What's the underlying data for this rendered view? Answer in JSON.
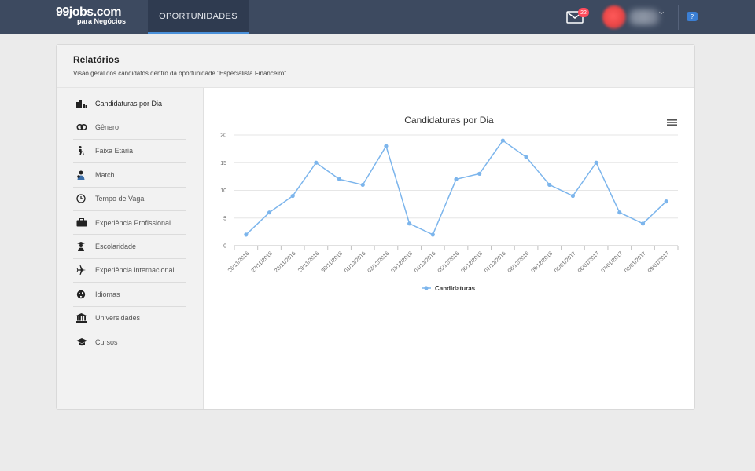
{
  "header": {
    "logo_main": "99jobs.com",
    "logo_sub": "para Negócios",
    "nav_tab": "OPORTUNIDADES",
    "mail_count": "22",
    "help_label": "?"
  },
  "page": {
    "title": "Relatórios",
    "subtitle": "Visão geral dos candidatos dentro da oportunidade \"Especialista Financeiro\"."
  },
  "sidebar": {
    "items": [
      {
        "label": "Candidaturas por Dia",
        "icon": "bar-chart-icon",
        "active": true
      },
      {
        "label": "Gênero",
        "icon": "gender-icon"
      },
      {
        "label": "Faixa Etária",
        "icon": "elderly-icon"
      },
      {
        "label": "Match",
        "icon": "match-icon"
      },
      {
        "label": "Tempo de Vaga",
        "icon": "clock-icon"
      },
      {
        "label": "Experiência Profissional",
        "icon": "briefcase-icon"
      },
      {
        "label": "Escolaridade",
        "icon": "graduate-icon"
      },
      {
        "label": "Experiência internacional",
        "icon": "airplane-icon"
      },
      {
        "label": "Idiomas",
        "icon": "globe-icon"
      },
      {
        "label": "Universidades",
        "icon": "university-icon"
      },
      {
        "label": "Cursos",
        "icon": "graduation-cap-icon"
      }
    ]
  },
  "colors": {
    "topbar": "#3d4a60",
    "series": "#7cb5ec",
    "badge": "#ff4b5c",
    "help": "#3b7fd4"
  },
  "chart_data": {
    "type": "line",
    "title": "Candidaturas por Dia",
    "categories": [
      "26/11/2016",
      "27/11/2016",
      "28/11/2016",
      "29/11/2016",
      "30/11/2016",
      "01/12/2016",
      "02/12/2016",
      "03/12/2016",
      "04/12/2016",
      "05/12/2016",
      "06/12/2016",
      "07/12/2016",
      "08/12/2016",
      "09/12/2016",
      "05/01/2017",
      "06/01/2017",
      "07/01/2017",
      "08/01/2017",
      "09/01/2017"
    ],
    "series": [
      {
        "name": "Candidaturas",
        "values": [
          2,
          6,
          9,
          15,
          12,
          11,
          18,
          4,
          2,
          12,
          13,
          19,
          16,
          11,
          9,
          15,
          6,
          4,
          8
        ]
      }
    ],
    "yticks": [
      0,
      5,
      10,
      15,
      20
    ],
    "ylim": [
      0,
      20
    ],
    "grid": true,
    "legend": "bottom-center",
    "menu_icon": "hamburger-menu-icon"
  }
}
